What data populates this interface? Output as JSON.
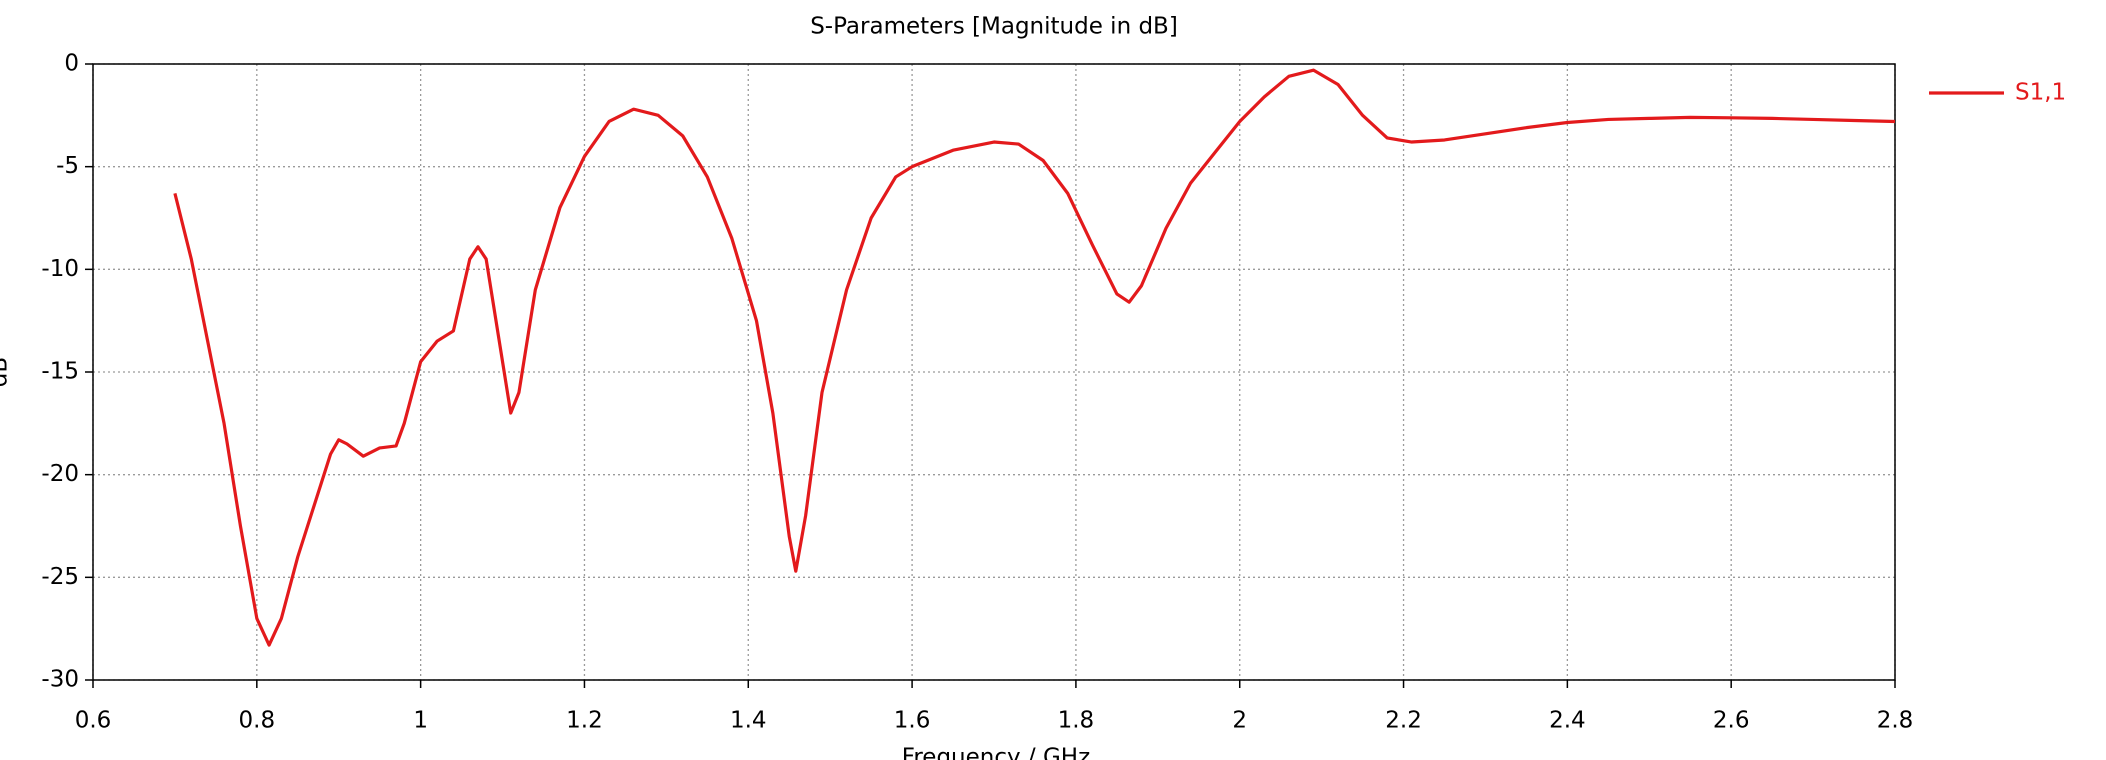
{
  "chart_data": {
    "type": "line",
    "title": "S-Parameters [Magnitude in dB]",
    "xlabel": "Frequency / GHz",
    "ylabel": "dB",
    "x": [
      0.7,
      0.72,
      0.74,
      0.76,
      0.78,
      0.8,
      0.815,
      0.83,
      0.85,
      0.87,
      0.89,
      0.9,
      0.91,
      0.93,
      0.95,
      0.97,
      0.98,
      1.0,
      1.02,
      1.04,
      1.06,
      1.07,
      1.08,
      1.1,
      1.11,
      1.12,
      1.14,
      1.17,
      1.2,
      1.23,
      1.26,
      1.29,
      1.32,
      1.35,
      1.38,
      1.41,
      1.43,
      1.45,
      1.458,
      1.47,
      1.49,
      1.52,
      1.55,
      1.58,
      1.6,
      1.65,
      1.7,
      1.73,
      1.76,
      1.79,
      1.82,
      1.85,
      1.865,
      1.88,
      1.91,
      1.94,
      1.97,
      2.0,
      2.03,
      2.06,
      2.09,
      2.12,
      2.15,
      2.18,
      2.21,
      2.25,
      2.3,
      2.35,
      2.4,
      2.45,
      2.5,
      2.55,
      2.6,
      2.65,
      2.7,
      2.75,
      2.8
    ],
    "series": [
      {
        "name": "S1,1",
        "color": "#e31a1c",
        "values": [
          -6.3,
          -9.5,
          -13.5,
          -17.5,
          -22.5,
          -27,
          -28.3,
          -27,
          -24,
          -21.5,
          -19,
          -18.3,
          -18.5,
          -19.1,
          -18.7,
          -18.6,
          -17.5,
          -14.5,
          -13.5,
          -13,
          -9.5,
          -8.9,
          -9.5,
          -14.5,
          -17,
          -16,
          -11,
          -7,
          -4.5,
          -2.8,
          -2.2,
          -2.5,
          -3.5,
          -5.5,
          -8.5,
          -12.5,
          -17,
          -23,
          -24.7,
          -22,
          -16,
          -11,
          -7.5,
          -5.5,
          -5,
          -4.2,
          -3.8,
          -3.9,
          -4.7,
          -6.3,
          -8.8,
          -11.2,
          -11.6,
          -10.8,
          -8,
          -5.8,
          -4.3,
          -2.8,
          -1.6,
          -0.6,
          -0.3,
          -1,
          -2.5,
          -3.6,
          -3.8,
          -3.7,
          -3.4,
          -3.1,
          -2.85,
          -2.7,
          -2.65,
          -2.6,
          -2.62,
          -2.65,
          -2.7,
          -2.75,
          -2.8
        ]
      }
    ],
    "xlim": [
      0.6,
      2.8
    ],
    "xticks": [
      0.6,
      0.8,
      1,
      1.2,
      1.4,
      1.6,
      1.8,
      2,
      2.2,
      2.4,
      2.6,
      2.8
    ],
    "ylim": [
      -30,
      0
    ],
    "yticks": [
      0,
      -5,
      -10,
      -15,
      -20,
      -25,
      -30
    ],
    "grid": true,
    "legend": "right"
  }
}
